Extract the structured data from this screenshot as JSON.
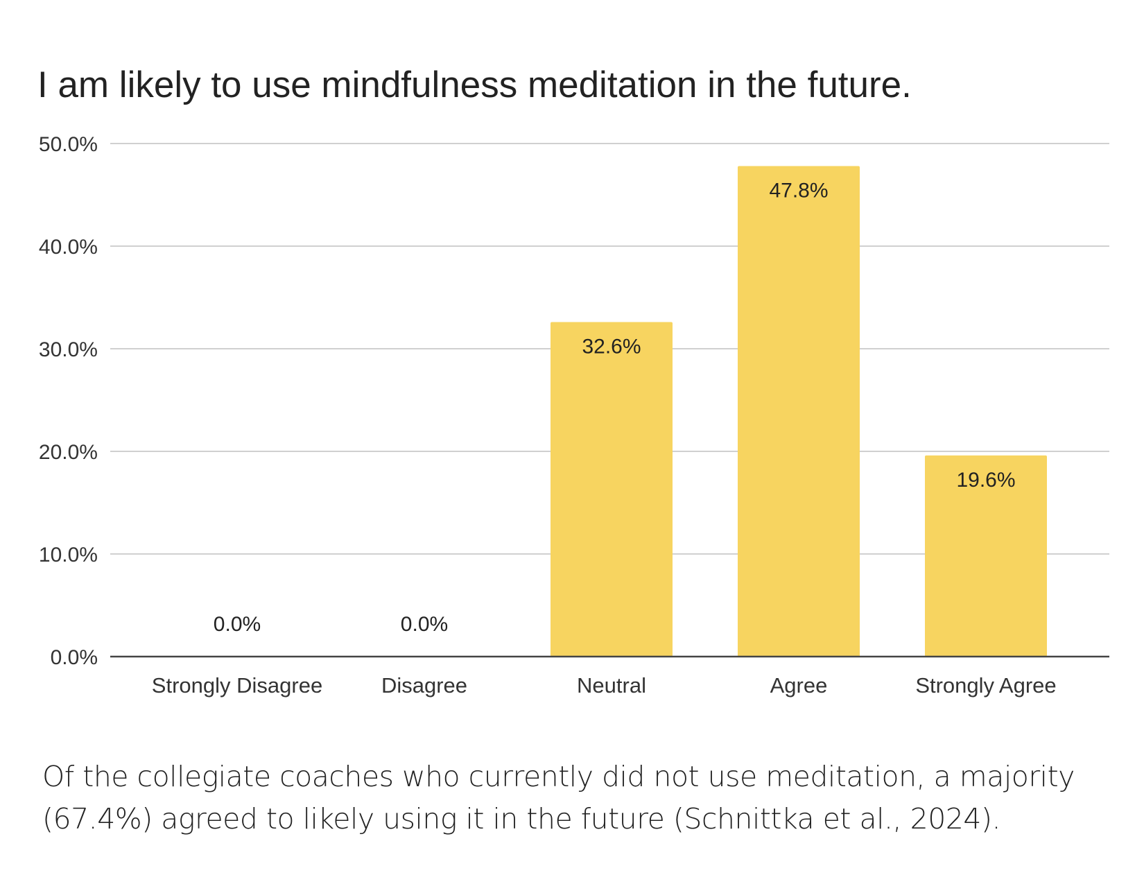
{
  "chart_data": {
    "type": "bar",
    "title": "I am likely to use mindfulness meditation in the future.",
    "categories": [
      "Strongly Disagree",
      "Disagree",
      "Neutral",
      "Agree",
      "Strongly Agree"
    ],
    "values": [
      0.0,
      0.0,
      32.6,
      47.8,
      19.6
    ],
    "data_labels": [
      "0.0%",
      "0.0%",
      "32.6%",
      "47.8%",
      "19.6%"
    ],
    "y_ticks": [
      "0.0%",
      "10.0%",
      "20.0%",
      "30.0%",
      "40.0%",
      "50.0%"
    ],
    "ylim": [
      0,
      50
    ],
    "xlabel": "",
    "ylabel": "",
    "grid": true,
    "legend": "none",
    "bar_color": "#f7d460"
  },
  "caption": "Of the collegiate coaches who currently did not use meditation, a majority (67.4%) agreed to likely using it in the future (Schnittka et al., 2024)."
}
